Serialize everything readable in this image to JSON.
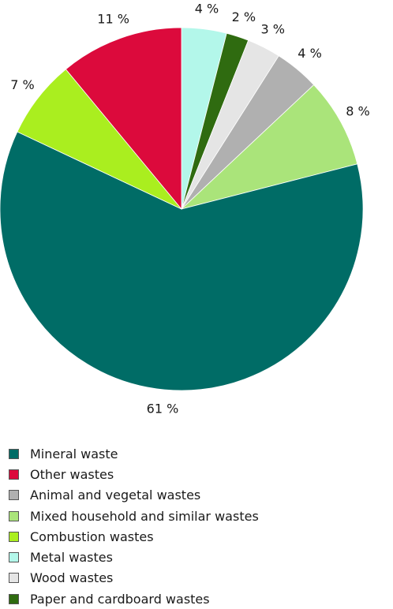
{
  "chart_data": {
    "type": "pie",
    "start_angle_deg": 0,
    "direction": "clockwise",
    "slices": [
      {
        "name": "Metal wastes",
        "value": 4,
        "label": "4 %",
        "color": "#b3f7ea"
      },
      {
        "name": "Paper and cardboard wastes",
        "value": 2,
        "label": "2 %",
        "color": "#2f6b10"
      },
      {
        "name": "Wood wastes",
        "value": 3,
        "label": "3 %",
        "color": "#e5e5e5"
      },
      {
        "name": "Animal and vegetal wastes",
        "value": 4,
        "label": "4 %",
        "color": "#b0b0b0"
      },
      {
        "name": "Mixed household and similar wastes",
        "value": 8,
        "label": "8 %",
        "color": "#aae47a"
      },
      {
        "name": "Mineral waste",
        "value": 61,
        "label": "61 %",
        "color": "#006c66"
      },
      {
        "name": "Combustion wastes",
        "value": 7,
        "label": "7 %",
        "color": "#aaee1f"
      },
      {
        "name": "Other wastes",
        "value": 11,
        "label": "11 %",
        "color": "#dc0a3c"
      }
    ],
    "legend": [
      {
        "label": "Mineral waste",
        "color": "#006c66"
      },
      {
        "label": "Other wastes",
        "color": "#dc0a3c"
      },
      {
        "label": "Animal and vegetal wastes",
        "color": "#b0b0b0"
      },
      {
        "label": "Mixed household and similar wastes",
        "color": "#aae47a"
      },
      {
        "label": "Combustion wastes",
        "color": "#aaee1f"
      },
      {
        "label": "Metal wastes",
        "color": "#b3f7ea"
      },
      {
        "label": "Wood wastes",
        "color": "#e5e5e5"
      },
      {
        "label": "Paper and cardboard wastes",
        "color": "#2f6b10"
      }
    ],
    "legend_placement": "bottom-left"
  }
}
